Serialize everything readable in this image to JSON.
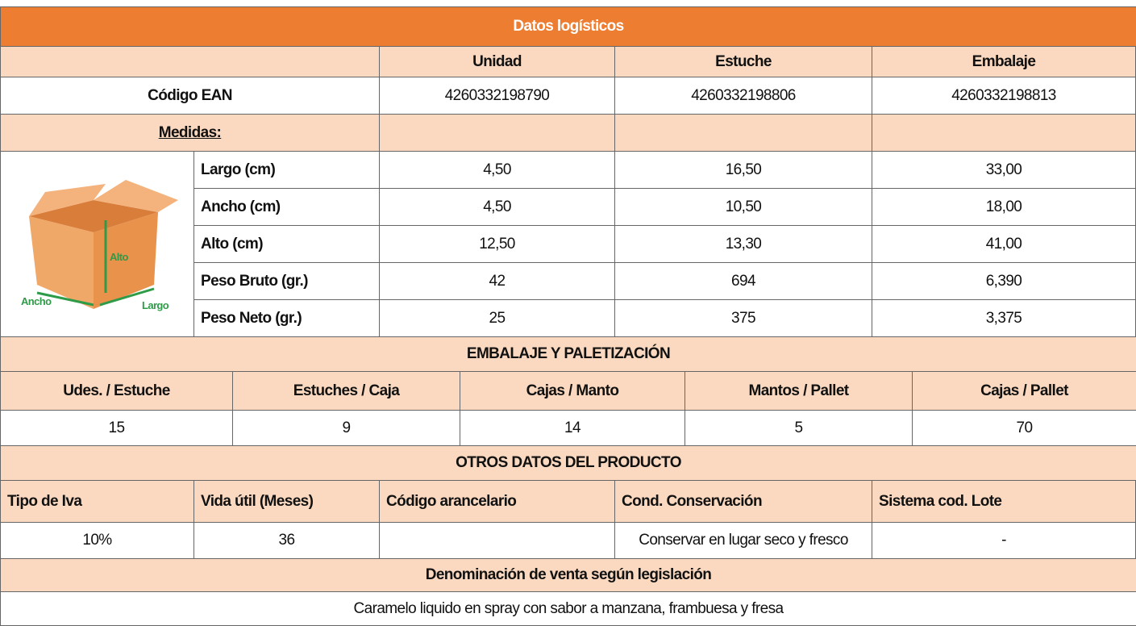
{
  "title": "Datos logísticos",
  "logistics": {
    "columns": [
      "Unidad",
      "Estuche",
      "Embalaje"
    ],
    "ean": {
      "label": "Código EAN",
      "values": [
        "4260332198790",
        "4260332198806",
        "4260332198813"
      ]
    },
    "measures_label": "Medidas:",
    "diagram": {
      "height": "Alto",
      "width": "Ancho",
      "length": "Largo"
    },
    "rows": [
      {
        "label": "Largo (cm)",
        "values": [
          "4,50",
          "16,50",
          "33,00"
        ]
      },
      {
        "label": "Ancho (cm)",
        "values": [
          "4,50",
          "10,50",
          "18,00"
        ]
      },
      {
        "label": "Alto (cm)",
        "values": [
          "12,50",
          "13,30",
          "41,00"
        ]
      },
      {
        "label": "Peso Bruto (gr.)",
        "values": [
          "42",
          "694",
          "6,390"
        ]
      },
      {
        "label": "Peso Neto (gr.)",
        "values": [
          "25",
          "375",
          "3,375"
        ]
      }
    ]
  },
  "packing": {
    "title": "EMBALAJE Y PALETIZACIÓN",
    "headers": [
      "Udes. / Estuche",
      "Estuches / Caja",
      "Cajas / Manto",
      "Mantos / Pallet",
      "Cajas / Pallet"
    ],
    "values": [
      "15",
      "9",
      "14",
      "5",
      "70"
    ]
  },
  "other": {
    "title": "OTROS DATOS DEL PRODUCTO",
    "headers": [
      "Tipo de Iva",
      "Vida útil (Meses)",
      "Código arancelario",
      "Cond. Conservación",
      "Sistema cod. Lote"
    ],
    "values": [
      "10%",
      "36",
      null,
      "Conservar en lugar seco y fresco",
      "-"
    ]
  },
  "denomination": {
    "title": "Denominación de venta según legislación",
    "text": "Caramelo liquido en spray con sabor a manzana, frambuesa y fresa"
  }
}
